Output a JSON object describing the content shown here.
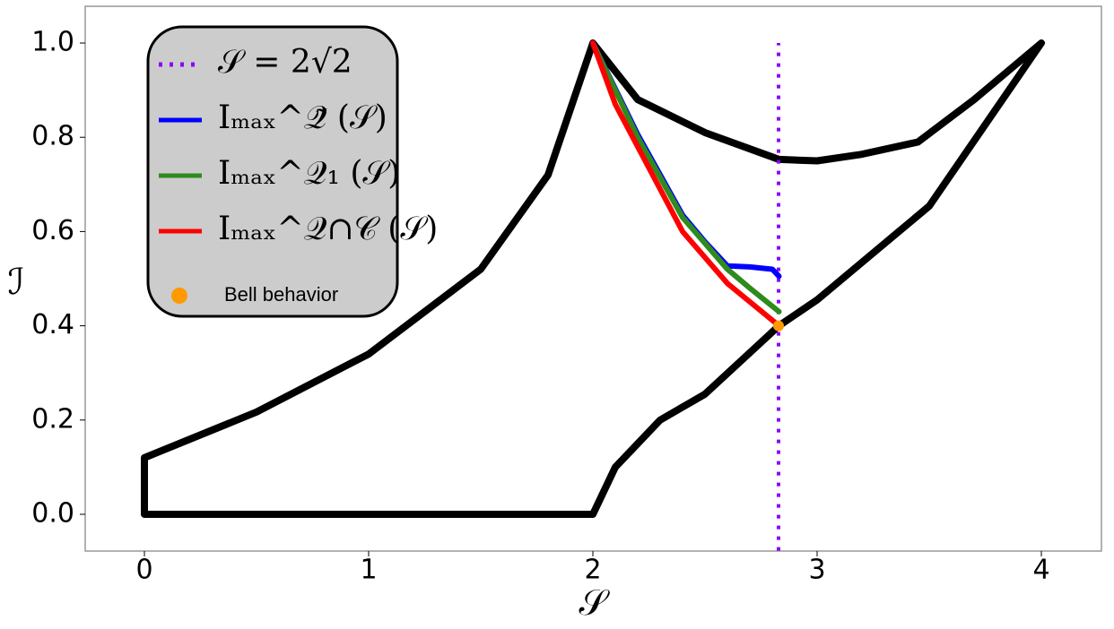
{
  "chart_data": {
    "type": "line",
    "xlabel": "𝒮",
    "ylabel": "ℐ",
    "xlim": [
      -0.264,
      4.268
    ],
    "ylim": [
      -0.078,
      1.078
    ],
    "xticks": [
      0,
      1,
      2,
      3,
      4
    ],
    "yticks": [
      {
        "value": 0,
        "label": "0.0"
      },
      {
        "value": 0.2,
        "label": "0.2"
      },
      {
        "value": 0.4,
        "label": "0.4"
      },
      {
        "value": 0.6,
        "label": "0.6"
      },
      {
        "value": 0.8,
        "label": "0.8"
      },
      {
        "value": 1,
        "label": "1.0"
      }
    ],
    "grid": false,
    "legend": "upper left",
    "series": [
      {
        "color": "#000000",
        "style": "solid",
        "x": [
          2,
          0,
          0,
          0.5,
          1,
          1.5,
          1.8,
          2,
          2.2,
          2.5,
          2.83,
          3,
          3.2,
          3.45,
          3.7,
          4,
          3.5,
          3,
          2.83,
          2.5,
          2.3,
          2.1,
          2
        ],
        "values": [
          0,
          0,
          0.12,
          0.217,
          0.34,
          0.52,
          0.72,
          1,
          0.88,
          0.81,
          0.753,
          0.75,
          0.764,
          0.79,
          0.88,
          1,
          0.654,
          0.455,
          0.4,
          0.255,
          0.2,
          0.1,
          0
        ]
      },
      {
        "name": "𝒮 = 2√2",
        "color": "#8b00ff",
        "style": "dotted",
        "x": [
          2.828,
          2.828
        ],
        "values": [
          -0.1,
          1
        ]
      },
      {
        "name": "Iₘₐₓ^𝒬̃ (𝒮)",
        "color": "#0000ff",
        "style": "solid",
        "x": [
          2,
          2.2,
          2.4,
          2.5,
          2.6,
          2.7,
          2.8,
          2.83
        ],
        "values": [
          1,
          0.806,
          0.635,
          0.578,
          0.527,
          0.525,
          0.52,
          0.505
        ]
      },
      {
        "name": "Iₘₐₓ^𝒬₁ (𝒮)",
        "color": "#2e8b1e",
        "style": "solid",
        "x": [
          2,
          2.2,
          2.4,
          2.6,
          2.7,
          2.83
        ],
        "values": [
          1,
          0.8,
          0.63,
          0.52,
          0.48,
          0.43
        ]
      },
      {
        "name": "Iₘₐₓ^𝒬∩𝒞 (𝒮)",
        "color": "#ff0000",
        "style": "solid",
        "x": [
          2,
          2.1,
          2.2,
          2.4,
          2.6,
          2.83
        ],
        "values": [
          1,
          0.87,
          0.78,
          0.6,
          0.49,
          0.4
        ]
      },
      {
        "name": "Bell behavior",
        "color": "#ff9900",
        "style": "marker",
        "x": [
          2.828
        ],
        "values": [
          0.4
        ]
      }
    ]
  }
}
